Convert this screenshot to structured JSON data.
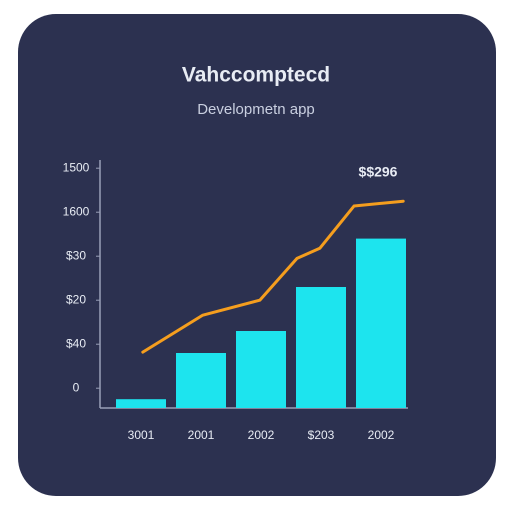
{
  "chart_data": {
    "type": "bar-line",
    "title": "Vahccomptecd",
    "subtitle": "Developmetn app",
    "annotation": "$$296",
    "categories": [
      "3001",
      "2001",
      "2002",
      "$203",
      "2002"
    ],
    "values": [
      -0.25,
      0.8,
      1.3,
      2.3,
      3.4
    ],
    "color": "#1de4ee",
    "line": {
      "color": "#f59e1e",
      "x": [
        0.03,
        1.03,
        1.98,
        2.6,
        2.98,
        3.55,
        4.37
      ],
      "values": [
        0.82,
        1.66,
        2.0,
        2.95,
        3.18,
        4.14,
        4.25
      ]
    },
    "ylim": [
      -0.45,
      5.4
    ],
    "yticks": [
      {
        "value": 0,
        "label": "0"
      },
      {
        "value": 1,
        "label": "$40"
      },
      {
        "value": 2,
        "label": "$20"
      },
      {
        "value": 3,
        "label": "$30"
      },
      {
        "value": 4,
        "label": "1600"
      },
      {
        "value": 5,
        "label": "1500"
      }
    ]
  }
}
